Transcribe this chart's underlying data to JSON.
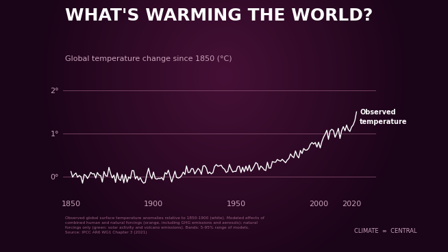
{
  "title": "WHAT'S WARMING THE WORLD?",
  "subtitle": "Global temperature change since 1850 (°C)",
  "xlabel_ticks": [
    1850,
    1900,
    1950,
    2000,
    2020
  ],
  "ytick_labels": [
    "0°",
    "1°",
    "2°"
  ],
  "ylim": [
    -0.45,
    2.45
  ],
  "xlim": [
    1845,
    2035
  ],
  "annotation_text": "Observed\ntemperature",
  "line_color": "#ffffff",
  "bg_color": "#2a0a20",
  "grid_color": "#7a4068",
  "title_color": "#ffffff",
  "subtitle_color": "#c8a0b8",
  "tick_color": "#c8a0b8",
  "annotation_color": "#ffffff",
  "footnote_line1": "Observed global surface temperature anomalies relative to 1850-1900 (white). Modeled effects of",
  "footnote_line2": "combined human and natural forcings (orange, including GHG emissions and aerosols); natural",
  "footnote_line3": "forcings only (green: solar activity and volcano emissions). Bands: 5-95% range of models.",
  "footnote_line4": "Source: IPCC AR6 WG1 Chapter 3 (2021)",
  "credit": "CLIMATE  ∞  CENTRAL"
}
